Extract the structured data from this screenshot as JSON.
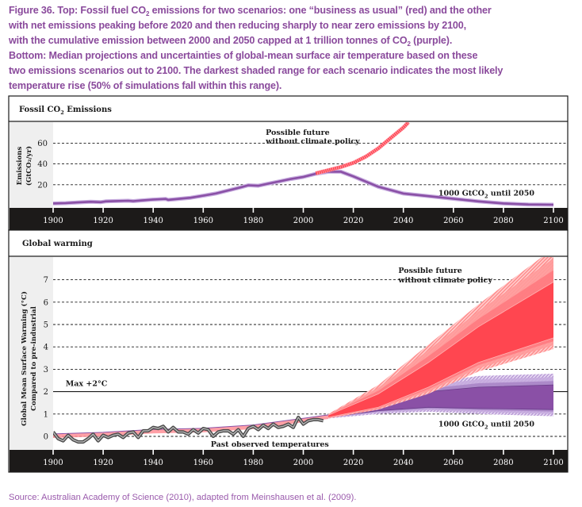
{
  "caption": {
    "lines": [
      [
        "Figure 36. Top: Fossil fuel CO",
        "2",
        " emissions for two scenarios: one “business as usual” (red) and the other"
      ],
      [
        "with net emissions peaking before 2020 and then reducing sharply to near zero emissions by 2100,"
      ],
      [
        "with the cumulative emission between 2000 and 2050 capped at 1 trillion tonnes of CO",
        "2",
        " (purple)."
      ],
      [
        "Bottom: Median projections and uncertainties of global-mean surface air temperature based on these"
      ],
      [
        "two emissions scenarios out to 2100. The darkest shaded range for each scenario indicates the most likely"
      ],
      [
        "temperature rise (50% of simulations fall within this range)."
      ]
    ]
  },
  "source": "Source: Australian Academy of Science (2010), adapted from Meinshausen et al. (2009).",
  "colors": {
    "caption": "#8a4a9c",
    "red": "#ff4650",
    "red_light": "#ffa0a0",
    "purple": "#8a50a6",
    "purple_light": "#c9afe0",
    "observed": "#555555",
    "axis_band": "#1c1a19",
    "ylabel_bg": "#efefef"
  },
  "chart_data": [
    {
      "type": "line",
      "title": "Fossil CO₂ Emissions",
      "title_parts": [
        "Fossil CO",
        "2",
        " Emissions"
      ],
      "xlabel": "",
      "ylabel": "Emissions (GtCO₂/yr)",
      "ylabel_lines": [
        "Emissions",
        "(GtCO₂/yr)"
      ],
      "xlim": [
        1900,
        2100
      ],
      "ylim": [
        0,
        80
      ],
      "xticks": [
        1900,
        1920,
        1940,
        1960,
        1980,
        2000,
        2020,
        2040,
        2060,
        2080,
        2100
      ],
      "yticks": [
        20,
        40,
        60
      ],
      "grid": "horizontal dashed",
      "series": [
        {
          "name": "1000 GtCO₂ until 2050",
          "color": "purple",
          "x": [
            1900,
            1905,
            1910,
            1915,
            1919,
            1921,
            1925,
            1930,
            1932,
            1935,
            1940,
            1945,
            1946,
            1950,
            1955,
            1960,
            1965,
            1970,
            1975,
            1978,
            1982,
            1985,
            1990,
            1995,
            2000,
            2005,
            2010,
            2015,
            2020,
            2030,
            2040,
            2050,
            2060,
            2070,
            2080,
            2090,
            2100
          ],
          "y": [
            2,
            2.3,
            3,
            3.6,
            3.2,
            4,
            4.3,
            4.6,
            4.2,
            4.8,
            5.7,
            6.3,
            5.4,
            6.3,
            7.5,
            9.5,
            11.5,
            14.5,
            17.5,
            19.5,
            19,
            20.5,
            23,
            25.5,
            27.5,
            30.5,
            32.5,
            32.5,
            28,
            18,
            11.5,
            9,
            6.5,
            4,
            2,
            1,
            0.8
          ]
        },
        {
          "name": "Possible future without climate policy",
          "color": "red",
          "x": [
            2005,
            2010,
            2015,
            2020,
            2025,
            2030,
            2035,
            2040,
            2042
          ],
          "y": [
            31,
            34,
            37,
            41,
            47,
            55,
            65,
            75,
            80
          ]
        }
      ],
      "annotations": [
        {
          "text": [
            "Possible future",
            "without climate policy"
          ],
          "x": 1985,
          "y": 68
        },
        {
          "text": [
            "1000 GtCO",
            "2",
            " until 2050"
          ],
          "x": 2054,
          "y": 12
        }
      ]
    },
    {
      "type": "area",
      "title": "Global warming",
      "xlabel": "",
      "ylabel": "Global Mean Surface Warming (°C) Compared to pre-industrial",
      "ylabel_lines": [
        "Global Mean Surface Warming (°C)",
        "Compared to pre-industrial"
      ],
      "xlim": [
        1900,
        2100
      ],
      "ylim": [
        -0.6,
        8.3
      ],
      "xticks": [
        1900,
        1920,
        1940,
        1960,
        1980,
        2000,
        2020,
        2040,
        2060,
        2080,
        2100
      ],
      "yticks": [
        0,
        1,
        2,
        3,
        4,
        5,
        6,
        7
      ],
      "grid": "horizontal dashed",
      "reference_line": {
        "y": 2,
        "label": "Max +2°C"
      },
      "observed": {
        "name": "Past observed temperatures",
        "x": [
          1900,
          1902,
          1904,
          1906,
          1908,
          1910,
          1912,
          1914,
          1916,
          1918,
          1920,
          1922,
          1924,
          1926,
          1928,
          1930,
          1932,
          1934,
          1936,
          1938,
          1940,
          1942,
          1944,
          1946,
          1948,
          1950,
          1952,
          1954,
          1956,
          1958,
          1960,
          1962,
          1964,
          1966,
          1968,
          1970,
          1972,
          1974,
          1976,
          1978,
          1980,
          1982,
          1984,
          1986,
          1988,
          1990,
          1992,
          1994,
          1996,
          1998,
          2000,
          2002,
          2004,
          2006,
          2008
        ],
        "y": [
          0.2,
          -0.1,
          -0.2,
          0.05,
          -0.15,
          -0.25,
          -0.25,
          -0.1,
          0.1,
          -0.2,
          0.05,
          -0.05,
          0.05,
          0.1,
          -0.05,
          0.15,
          0.2,
          -0.05,
          0.25,
          0.25,
          0.4,
          0.35,
          0.45,
          0.2,
          0.4,
          0.2,
          0.2,
          0.1,
          0.3,
          0.15,
          0.35,
          0.3,
          0.0,
          0.2,
          0.25,
          0.25,
          0.1,
          0.3,
          0.0,
          0.35,
          0.45,
          0.3,
          0.5,
          0.35,
          0.55,
          0.4,
          0.45,
          0.55,
          0.4,
          0.85,
          0.55,
          0.7,
          0.75,
          0.75,
          0.7
        ]
      },
      "historical_model": {
        "x": [
          1900,
          1920,
          1940,
          1960,
          1980,
          2000,
          2010
        ],
        "y": [
          0.05,
          0.12,
          0.25,
          0.3,
          0.45,
          0.75,
          0.9
        ]
      },
      "scenarios": [
        {
          "name": "Possible future without climate policy",
          "color": "red",
          "x": [
            2010,
            2030,
            2050,
            2070,
            2100
          ],
          "outer_low": [
            0.8,
            1.2,
            1.9,
            2.9,
            3.9
          ],
          "outer_high": [
            1.0,
            2.3,
            4.1,
            5.9,
            8.4
          ],
          "likely_low": [
            0.85,
            1.3,
            2.2,
            3.3,
            4.4
          ],
          "likely_high": [
            0.95,
            1.9,
            3.3,
            4.9,
            6.9
          ]
        },
        {
          "name": "1000 GtCO₂ until 2050",
          "color": "purple",
          "x": [
            2010,
            2030,
            2050,
            2070,
            2100
          ],
          "outer_low": [
            0.8,
            1.0,
            1.1,
            1.0,
            0.9
          ],
          "outer_high": [
            1.0,
            1.7,
            2.4,
            2.7,
            2.8
          ],
          "likely_low": [
            0.85,
            1.15,
            1.3,
            1.25,
            1.2
          ],
          "likely_high": [
            0.95,
            1.45,
            2.0,
            2.2,
            2.3
          ]
        }
      ],
      "annotations": [
        {
          "text": [
            "Possible future",
            "without climate policy"
          ],
          "x": 2038,
          "y": 7.3
        },
        {
          "text": [
            "1000 GtCO",
            "2",
            " until 2050"
          ],
          "x": 2054,
          "y": 0.55
        },
        {
          "text": [
            "Past observed temperatures"
          ],
          "x": 1963,
          "y": -0.25
        },
        {
          "text": [
            "Max +2°C"
          ],
          "x": 1905,
          "y": 2.35
        }
      ]
    }
  ]
}
